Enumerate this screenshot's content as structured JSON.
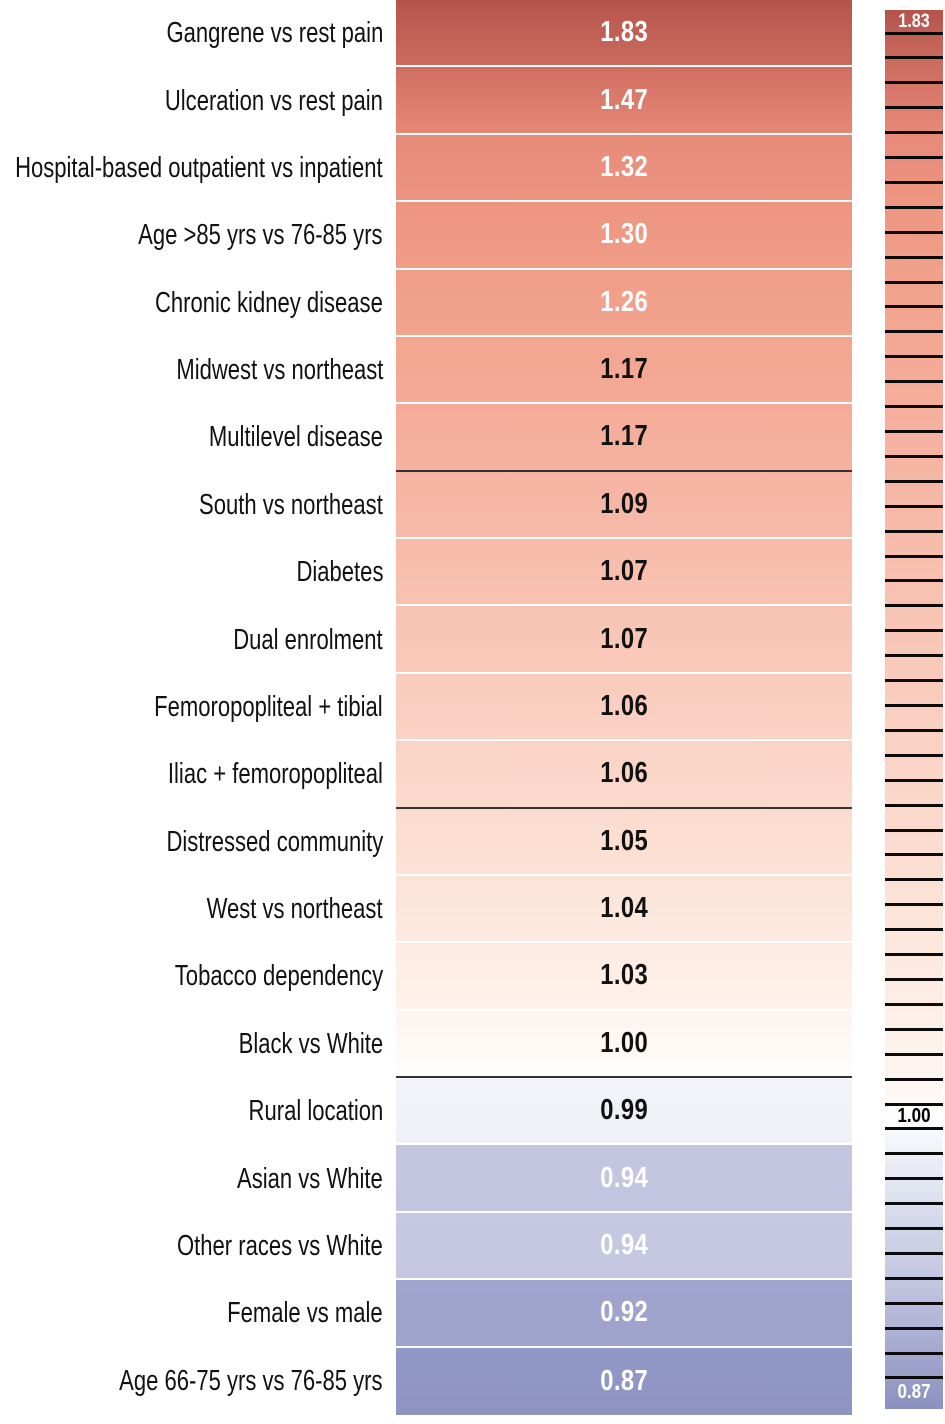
{
  "chart_data": {
    "type": "heatmap",
    "title": "",
    "xlabel": "",
    "ylabel": "",
    "legend_position": "right-colorbar",
    "categories": [
      "Gangrene vs rest pain",
      "Ulceration vs rest pain",
      "Hospital-based outpatient vs inpatient",
      "Age >85 yrs vs 76-85 yrs",
      "Chronic kidney disease",
      "Midwest vs northeast",
      "Multilevel disease",
      "South vs northeast",
      "Diabetes",
      "Dual enrolment",
      "Femoropopliteal + tibial",
      "Iliac + femoropopliteal",
      "Distressed community",
      "West vs northeast",
      "Tobacco dependency",
      "Black vs White",
      "Rural location",
      "Asian vs White",
      "Other races vs White",
      "Female vs male",
      "Age 66-75 yrs vs 76-85 yrs"
    ],
    "values": [
      1.83,
      1.47,
      1.32,
      1.3,
      1.26,
      1.17,
      1.17,
      1.09,
      1.07,
      1.07,
      1.06,
      1.06,
      1.05,
      1.04,
      1.03,
      1.0,
      0.99,
      0.94,
      0.94,
      0.92,
      0.87
    ],
    "rows": [
      {
        "label": "Gangrene vs rest pain",
        "value": "1.83",
        "color_top": "#b5544c",
        "color_bottom": "#cb6b5e",
        "text_color": "#ffffff",
        "separator": "white"
      },
      {
        "label": "Ulceration vs rest pain",
        "value": "1.47",
        "color_top": "#d06f61",
        "color_bottom": "#e58777",
        "text_color": "#ffffff",
        "separator": "white"
      },
      {
        "label": "Hospital-based outpatient vs inpatient",
        "value": "1.32",
        "color_top": "#e78b79",
        "color_bottom": "#ec9480",
        "text_color": "#ffffff",
        "separator": "white"
      },
      {
        "label": "Age >85 yrs vs 76-85 yrs",
        "value": "1.30",
        "color_top": "#ed957f",
        "color_bottom": "#f09c87",
        "text_color": "#ffffff",
        "separator": "white"
      },
      {
        "label": "Chronic kidney disease",
        "value": "1.26",
        "color_top": "#f09d87",
        "color_bottom": "#f2a48e",
        "text_color": "#ffffff",
        "separator": "white"
      },
      {
        "label": "Midwest vs northeast",
        "value": "1.17",
        "color_top": "#f3a58f",
        "color_bottom": "#f4ab97",
        "text_color": "#111111",
        "separator": "white"
      },
      {
        "label": "Multilevel disease",
        "value": "1.17",
        "color_top": "#f4ac98",
        "color_bottom": "#f5b2a0",
        "text_color": "#111111",
        "separator": "dark"
      },
      {
        "label": "South vs northeast",
        "value": "1.09",
        "color_top": "#f6b3a1",
        "color_bottom": "#f7baa9",
        "text_color": "#111111",
        "separator": "white"
      },
      {
        "label": "Diabetes",
        "value": "1.07",
        "color_top": "#f7bbaa",
        "color_bottom": "#f8c2b2",
        "text_color": "#111111",
        "separator": "white"
      },
      {
        "label": "Dual enrolment",
        "value": "1.07",
        "color_top": "#f8c3b3",
        "color_bottom": "#f9cabb",
        "text_color": "#111111",
        "separator": "white"
      },
      {
        "label": "Femoropopliteal + tibial",
        "value": "1.06",
        "color_top": "#f9cbbc",
        "color_bottom": "#fad2c4",
        "text_color": "#111111",
        "separator": "white"
      },
      {
        "label": "Iliac + femoropopliteal",
        "value": "1.06",
        "color_top": "#fad3c5",
        "color_bottom": "#fbdacd",
        "text_color": "#111111",
        "separator": "dark"
      },
      {
        "label": "Distressed community",
        "value": "1.05",
        "color_top": "#fbdbce",
        "color_bottom": "#fce2d6",
        "text_color": "#111111",
        "separator": "white"
      },
      {
        "label": "West vs northeast",
        "value": "1.04",
        "color_top": "#fce3d7",
        "color_bottom": "#fdeae0",
        "text_color": "#111111",
        "separator": "white"
      },
      {
        "label": "Tobacco dependency",
        "value": "1.03",
        "color_top": "#fdebe1",
        "color_bottom": "#fef2eb",
        "text_color": "#111111",
        "separator": "white"
      },
      {
        "label": "Black vs White",
        "value": "1.00",
        "color_top": "#fef3ed",
        "color_bottom": "#fffdfc",
        "text_color": "#111111",
        "separator": "dark"
      },
      {
        "label": "Rural location",
        "value": "0.99",
        "color_top": "#f2f2f9",
        "color_bottom": "#f0f1f8",
        "text_color": "#111111",
        "separator": "white"
      },
      {
        "label": "Asian vs White",
        "value": "0.94",
        "color_top": "#c4c6e0",
        "color_bottom": "#c3c5e0",
        "text_color": "#ffffff",
        "separator": "white"
      },
      {
        "label": "Other races vs White",
        "value": "0.94",
        "color_top": "#c7c9e2",
        "color_bottom": "#c5c7e1",
        "text_color": "#ffffff",
        "separator": "white"
      },
      {
        "label": "Female vs male",
        "value": "0.92",
        "color_top": "#a1a5cd",
        "color_bottom": "#9fa3cb",
        "text_color": "#ffffff",
        "separator": "white"
      },
      {
        "label": "Age 66-75 yrs vs 76-85 yrs",
        "value": "0.87",
        "color_top": "#9399c7",
        "color_bottom": "#8e93c2",
        "text_color": "#ffffff",
        "separator": "white"
      }
    ],
    "colorbar": {
      "top_label": "1.83",
      "middle_label": "1.00",
      "bottom_label": "0.87",
      "value_max": 1.83,
      "value_mid": 1.0,
      "value_min": 0.87,
      "tick_count": 55,
      "tick_color": "#0b0b0b",
      "gradient": [
        {
          "color": "#b5534b",
          "pos": 0
        },
        {
          "color": "#cb6b5e",
          "pos": 3.7
        },
        {
          "color": "#e68878",
          "pos": 8.6
        },
        {
          "color": "#ee9581",
          "pos": 13.6
        },
        {
          "color": "#f1a08a",
          "pos": 18.6
        },
        {
          "color": "#f5ae9b",
          "pos": 27.9
        },
        {
          "color": "#f7bcab",
          "pos": 37.9
        },
        {
          "color": "#f9cbbc",
          "pos": 47.9
        },
        {
          "color": "#fbd9cc",
          "pos": 57.6
        },
        {
          "color": "#fde8de",
          "pos": 67.2
        },
        {
          "color": "#fef6f1",
          "pos": 76.9
        },
        {
          "color": "#ffffff",
          "pos": 79.1
        },
        {
          "color": "#eef0f7",
          "pos": 81.9
        },
        {
          "color": "#d5d8ea",
          "pos": 86.5
        },
        {
          "color": "#c0c3de",
          "pos": 91.5
        },
        {
          "color": "#a3a7ce",
          "pos": 96.1
        },
        {
          "color": "#8b90c0",
          "pos": 100
        }
      ]
    },
    "separator_colors": {
      "white": "#ffffff",
      "dark": "#333333"
    }
  }
}
